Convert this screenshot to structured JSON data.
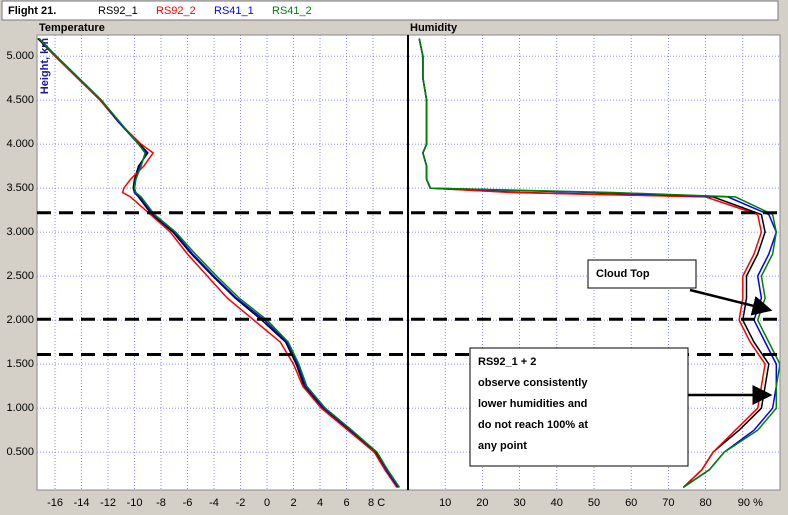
{
  "chart_data": {
    "type": "profile",
    "legend_title": "Flight 21.",
    "ylabel": "Height, km",
    "y": [
      0.1,
      0.3,
      0.5,
      0.75,
      1.0,
      1.25,
      1.5,
      1.75,
      2.0,
      2.25,
      2.5,
      2.75,
      3.0,
      3.2,
      3.4,
      3.45,
      3.5,
      3.6,
      3.75,
      3.9,
      4.0,
      4.25,
      4.5,
      4.75,
      5.0,
      5.2
    ],
    "ylim": [
      0.07,
      5.24
    ],
    "yticks": [
      {
        "value": 0.5,
        "label": "0.500"
      },
      {
        "value": 1.0,
        "label": "1.000"
      },
      {
        "value": 1.5,
        "label": "1.500"
      },
      {
        "value": 2.0,
        "label": "2.000"
      },
      {
        "value": 2.5,
        "label": "2.500"
      },
      {
        "value": 3.0,
        "label": "3.000"
      },
      {
        "value": 3.5,
        "label": "3.500"
      },
      {
        "value": 4.0,
        "label": "4.000"
      },
      {
        "value": 4.5,
        "label": "4.500"
      },
      {
        "value": 5.0,
        "label": "5.000"
      }
    ],
    "grid": true,
    "panels": [
      {
        "title": "Temperature",
        "xlim": [
          -17.36,
          10.64
        ],
        "xticks": [
          -16,
          -14,
          -12,
          -10,
          -8,
          -6,
          -4,
          -2,
          0,
          2,
          4,
          6,
          {
            "value": 8,
            "label": "8 C"
          }
        ]
      },
      {
        "title": "Humidity",
        "xlim": [
          0,
          100
        ],
        "xticks": [
          10,
          20,
          30,
          40,
          50,
          60,
          70,
          80,
          {
            "value": 90,
            "label": "90 %"
          }
        ]
      }
    ],
    "series": [
      {
        "name": "RS92_1",
        "color": "#000000",
        "temperature": [
          9.9,
          9.0,
          8.2,
          6.2,
          4.2,
          2.8,
          2.2,
          1.4,
          -0.4,
          -2.4,
          -4.1,
          -5.7,
          -7.1,
          -8.7,
          -9.7,
          -10.0,
          -10.1,
          -10.0,
          -9.7,
          -9.0,
          -9.6,
          -11.2,
          -12.6,
          -14.3,
          -16.0,
          -17.3
        ],
        "humidity": [
          74,
          79,
          82,
          89,
          95,
          96,
          97,
          93,
          90,
          91,
          91,
          94,
          96,
          95,
          82,
          30,
          6,
          5,
          5,
          4,
          5,
          5,
          5,
          4,
          4,
          3
        ]
      },
      {
        "name": "RS92_2",
        "color": "#ff0000",
        "temperature": [
          9.8,
          8.9,
          8.1,
          6.1,
          4.1,
          2.7,
          2.0,
          1.0,
          -1.0,
          -3.0,
          -4.5,
          -6.0,
          -7.3,
          -8.8,
          -10.3,
          -10.9,
          -10.8,
          -10.3,
          -9.3,
          -8.6,
          -9.5,
          -11.2,
          -12.6,
          -14.3,
          -16.0,
          -17.2
        ],
        "humidity": [
          74,
          79,
          82,
          88,
          94,
          95,
          96,
          92,
          89,
          90,
          90,
          93,
          95,
          94,
          80,
          28,
          6,
          5,
          5,
          4,
          5,
          5,
          5,
          4,
          4,
          3
        ]
      },
      {
        "name": "RS41_1",
        "color": "#0000ff",
        "temperature": [
          9.9,
          9.0,
          8.3,
          6.3,
          4.3,
          2.9,
          2.3,
          1.5,
          -0.2,
          -2.3,
          -4.0,
          -5.6,
          -7.0,
          -8.6,
          -9.6,
          -10.0,
          -10.0,
          -9.9,
          -9.6,
          -9.1,
          -9.7,
          -11.2,
          -12.5,
          -14.2,
          -15.9,
          -17.2
        ],
        "humidity": [
          74,
          81,
          85,
          93,
          98,
          99,
          99,
          96,
          93,
          95,
          94,
          97,
          99,
          97,
          86,
          50,
          6,
          5,
          5,
          4,
          5,
          5,
          5,
          4,
          4,
          3
        ]
      },
      {
        "name": "RS41_2",
        "color": "#008000",
        "temperature": [
          10.0,
          9.1,
          8.3,
          6.4,
          4.4,
          3.0,
          2.4,
          1.6,
          0.0,
          -2.1,
          -3.8,
          -5.4,
          -6.9,
          -8.5,
          -9.5,
          -9.9,
          -10.0,
          -9.9,
          -9.5,
          -9.2,
          -9.7,
          -11.1,
          -12.5,
          -14.2,
          -15.9,
          -17.2
        ],
        "humidity": [
          74,
          81,
          85,
          94,
          99,
          99,
          100,
          97,
          94,
          96,
          95,
          98,
          99,
          98,
          88,
          55,
          6,
          5,
          5,
          4,
          5,
          5,
          5,
          4,
          4,
          3
        ]
      }
    ],
    "reference_lines": [
      3.22,
      2.01,
      1.61
    ],
    "annotations": [
      {
        "lines": [
          "Cloud Top"
        ]
      },
      {
        "lines": [
          "RS92_1 + 2",
          "observe consistently",
          "lower humidities and",
          "do not reach 100% at",
          "any point"
        ]
      }
    ]
  }
}
